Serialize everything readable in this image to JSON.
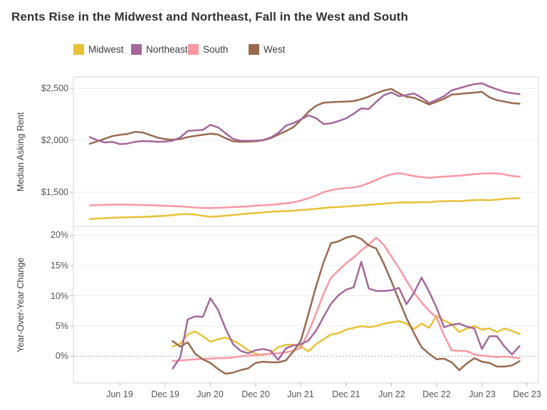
{
  "title": "Rents Rise in the Midwest and Northeast, Fall in the West and South",
  "legend": {
    "items": [
      {
        "label": "Midwest",
        "color": "#E8C136"
      },
      {
        "label": "Northeast",
        "color": "#A4689B"
      },
      {
        "label": "South",
        "color": "#FB97A3"
      },
      {
        "label": "West",
        "color": "#9A6A4F"
      }
    ]
  },
  "axes": {
    "x_tick_labels": [
      "Jun 19",
      "Dec 19",
      "Jun 20",
      "Dec 20",
      "Jun 21",
      "Dec 21",
      "Jun 22",
      "Dec 22",
      "Jun 23",
      "Dec 23"
    ],
    "rent_y_tick_labels": [
      "$2,500",
      "$2,000",
      "$1,500"
    ],
    "yoy_y_tick_labels": [
      "20%",
      "15%",
      "10%",
      "5%",
      "0%"
    ],
    "rent_axis_title": "Median Asking Rent",
    "yoy_axis_title": "Year-Over-Year Change"
  },
  "chart_data": [
    {
      "type": "line",
      "panel": "top",
      "ylabel": "Median Asking Rent",
      "ylim": [
        1150,
        2600
      ],
      "y_ticks": [
        1500,
        2000,
        2500
      ],
      "grid": "on",
      "legend_position": "top",
      "x": [
        "Feb 2019",
        "Mar 2019",
        "Apr 2019",
        "May 2019",
        "Jun 2019",
        "Jul 2019",
        "Aug 2019",
        "Sep 2019",
        "Oct 2019",
        "Nov 2019",
        "Dec 2019",
        "Jan 2020",
        "Feb 2020",
        "Mar 2020",
        "Apr 2020",
        "May 2020",
        "Jun 2020",
        "Jul 2020",
        "Aug 2020",
        "Sep 2020",
        "Oct 2020",
        "Nov 2020",
        "Dec 2020",
        "Jan 2021",
        "Feb 2021",
        "Mar 2021",
        "Apr 2021",
        "May 2021",
        "Jun 2021",
        "Jul 2021",
        "Aug 2021",
        "Sep 2021",
        "Oct 2021",
        "Nov 2021",
        "Dec 2021",
        "Jan 2022",
        "Feb 2022",
        "Mar 2022",
        "Apr 2022",
        "May 2022",
        "Jun 2022",
        "Jul 2022",
        "Aug 2022",
        "Sep 2022",
        "Oct 2022",
        "Nov 2022",
        "Dec 2022",
        "Jan 2023",
        "Feb 2023",
        "Mar 2023",
        "Apr 2023",
        "May 2023",
        "Jun 2023",
        "Jul 2023",
        "Aug 2023",
        "Sep 2023",
        "Oct 2023",
        "Nov 2023"
      ],
      "series": [
        {
          "name": "Midwest",
          "color": "#E8C136",
          "values": [
            1242,
            1246,
            1250,
            1254,
            1256,
            1258,
            1260,
            1262,
            1266,
            1270,
            1272,
            1280,
            1288,
            1290,
            1284,
            1272,
            1264,
            1268,
            1274,
            1280,
            1288,
            1294,
            1299,
            1305,
            1311,
            1315,
            1318,
            1322,
            1329,
            1334,
            1340,
            1348,
            1354,
            1358,
            1362,
            1367,
            1373,
            1378,
            1384,
            1390,
            1396,
            1401,
            1403,
            1400,
            1406,
            1403,
            1411,
            1414,
            1416,
            1413,
            1419,
            1424,
            1427,
            1422,
            1429,
            1436,
            1440,
            1443
          ]
        },
        {
          "name": "Northeast",
          "color": "#A4689B",
          "values": [
            2030,
            2000,
            1978,
            1985,
            1962,
            1968,
            1985,
            1992,
            1990,
            1985,
            1986,
            1996,
            2027,
            2090,
            2095,
            2100,
            2148,
            2125,
            2068,
            2012,
            1996,
            1994,
            1996,
            2002,
            2026,
            2070,
            2140,
            2165,
            2200,
            2240,
            2213,
            2156,
            2162,
            2185,
            2210,
            2255,
            2307,
            2300,
            2370,
            2432,
            2460,
            2424,
            2435,
            2450,
            2410,
            2357,
            2390,
            2424,
            2480,
            2500,
            2522,
            2540,
            2548,
            2516,
            2490,
            2466,
            2452,
            2443
          ]
        },
        {
          "name": "South",
          "color": "#FB97A3",
          "values": [
            1374,
            1376,
            1378,
            1380,
            1381,
            1380,
            1378,
            1376,
            1375,
            1372,
            1369,
            1366,
            1363,
            1358,
            1352,
            1348,
            1347,
            1350,
            1353,
            1357,
            1360,
            1363,
            1370,
            1374,
            1379,
            1385,
            1393,
            1402,
            1420,
            1442,
            1468,
            1500,
            1520,
            1532,
            1540,
            1546,
            1560,
            1588,
            1618,
            1650,
            1672,
            1683,
            1670,
            1655,
            1645,
            1638,
            1645,
            1650,
            1655,
            1658,
            1666,
            1674,
            1678,
            1682,
            1680,
            1670,
            1656,
            1649
          ]
        },
        {
          "name": "West",
          "color": "#9A6A4F",
          "values": [
            1966,
            1990,
            2015,
            2040,
            2052,
            2060,
            2080,
            2075,
            2050,
            2025,
            2010,
            2005,
            2011,
            2030,
            2042,
            2052,
            2062,
            2055,
            2020,
            1990,
            1985,
            1986,
            1990,
            2000,
            2020,
            2055,
            2087,
            2126,
            2195,
            2274,
            2331,
            2361,
            2366,
            2370,
            2372,
            2377,
            2395,
            2420,
            2452,
            2478,
            2493,
            2452,
            2418,
            2409,
            2377,
            2343,
            2370,
            2400,
            2439,
            2445,
            2452,
            2458,
            2466,
            2413,
            2385,
            2372,
            2357,
            2352
          ]
        }
      ]
    },
    {
      "type": "line",
      "panel": "bottom",
      "ylabel": "Year-Over-Year Change",
      "ylim": [
        -4,
        21.5
      ],
      "y_ticks": [
        0,
        5,
        10,
        15,
        20
      ],
      "zero_line": "dotted",
      "grid": "on",
      "start_month": "Jan 2020",
      "start_index": 11,
      "x": [
        "Jan 2020",
        "Feb 2020",
        "Mar 2020",
        "Apr 2020",
        "May 2020",
        "Jun 2020",
        "Jul 2020",
        "Aug 2020",
        "Sep 2020",
        "Oct 2020",
        "Nov 2020",
        "Dec 2020",
        "Jan 2021",
        "Feb 2021",
        "Mar 2021",
        "Apr 2021",
        "May 2021",
        "Jun 2021",
        "Jul 2021",
        "Aug 2021",
        "Sep 2021",
        "Oct 2021",
        "Nov 2021",
        "Dec 2021",
        "Jan 2022",
        "Feb 2022",
        "Mar 2022",
        "Apr 2022",
        "May 2022",
        "Jun 2022",
        "Jul 2022",
        "Aug 2022",
        "Sep 2022",
        "Oct 2022",
        "Nov 2022",
        "Dec 2022",
        "Jan 2023",
        "Feb 2023",
        "Mar 2023",
        "Apr 2023",
        "May 2023",
        "Jun 2023",
        "Jul 2023",
        "Aug 2023",
        "Sep 2023",
        "Oct 2023",
        "Nov 2023"
      ],
      "series": [
        {
          "name": "Midwest",
          "color": "#E8C136",
          "values": [
            1.6,
            2.1,
            3.6,
            4.1,
            3.3,
            2.4,
            2.8,
            3.1,
            2.6,
            1.9,
            1.0,
            0.4,
            0.2,
            0.5,
            1.5,
            1.9,
            1.9,
            1.6,
            0.8,
            2.0,
            2.8,
            3.6,
            3.8,
            4.4,
            4.7,
            5.0,
            4.8,
            5.0,
            5.4,
            5.6,
            5.8,
            5.4,
            4.5,
            5.4,
            4.7,
            6.7,
            5.9,
            5.3,
            4.0,
            4.6,
            5.0,
            4.4,
            4.6,
            4.0,
            4.6,
            4.2,
            3.7
          ]
        },
        {
          "name": "Northeast",
          "color": "#A4689B",
          "values": [
            -2.0,
            -0.2,
            6.1,
            6.6,
            6.5,
            9.6,
            7.7,
            4.6,
            2.0,
            0.9,
            0.5,
            1.0,
            1.2,
            0.9,
            -0.6,
            1.3,
            1.8,
            2.0,
            2.6,
            4.2,
            6.5,
            8.7,
            10.1,
            11.0,
            11.4,
            15.6,
            11.2,
            10.8,
            10.8,
            10.9,
            11.3,
            8.6,
            10.5,
            13.0,
            10.7,
            8.0,
            4.8,
            5.2,
            5.4,
            4.9,
            4.6,
            1.2,
            3.3,
            3.3,
            1.6,
            0.3,
            1.7
          ]
        },
        {
          "name": "South",
          "color": "#FB97A3",
          "values": [
            -0.8,
            -0.7,
            -0.6,
            -0.5,
            -0.45,
            -0.4,
            -0.3,
            -0.3,
            -0.2,
            0.0,
            0.1,
            0.15,
            0.3,
            0.4,
            0.5,
            0.65,
            0.9,
            1.4,
            4.0,
            7.0,
            10.3,
            13.0,
            14.2,
            15.4,
            16.3,
            17.5,
            18.5,
            19.6,
            18.4,
            16.5,
            14.6,
            12.5,
            10.5,
            8.9,
            7.5,
            6.4,
            3.4,
            1.0,
            0.9,
            0.85,
            0.3,
            0.1,
            0.0,
            -0.15,
            -0.05,
            -0.15,
            -0.35
          ]
        },
        {
          "name": "West",
          "color": "#9A6A4F",
          "values": [
            2.5,
            1.6,
            2.3,
            0.4,
            -0.5,
            -1.1,
            -2.1,
            -2.9,
            -2.7,
            -2.3,
            -2.0,
            -1.1,
            -0.9,
            -1.0,
            -1.0,
            -0.7,
            0.8,
            2.6,
            7.0,
            11.5,
            15.5,
            18.7,
            19.0,
            19.6,
            19.9,
            19.4,
            18.3,
            17.8,
            15.3,
            12.4,
            9.3,
            6.3,
            3.8,
            1.5,
            0.4,
            -0.5,
            -0.4,
            -1.0,
            -2.3,
            -1.2,
            -0.3,
            -0.9,
            -1.1,
            -1.7,
            -1.7,
            -1.5,
            -0.8
          ]
        }
      ]
    }
  ]
}
